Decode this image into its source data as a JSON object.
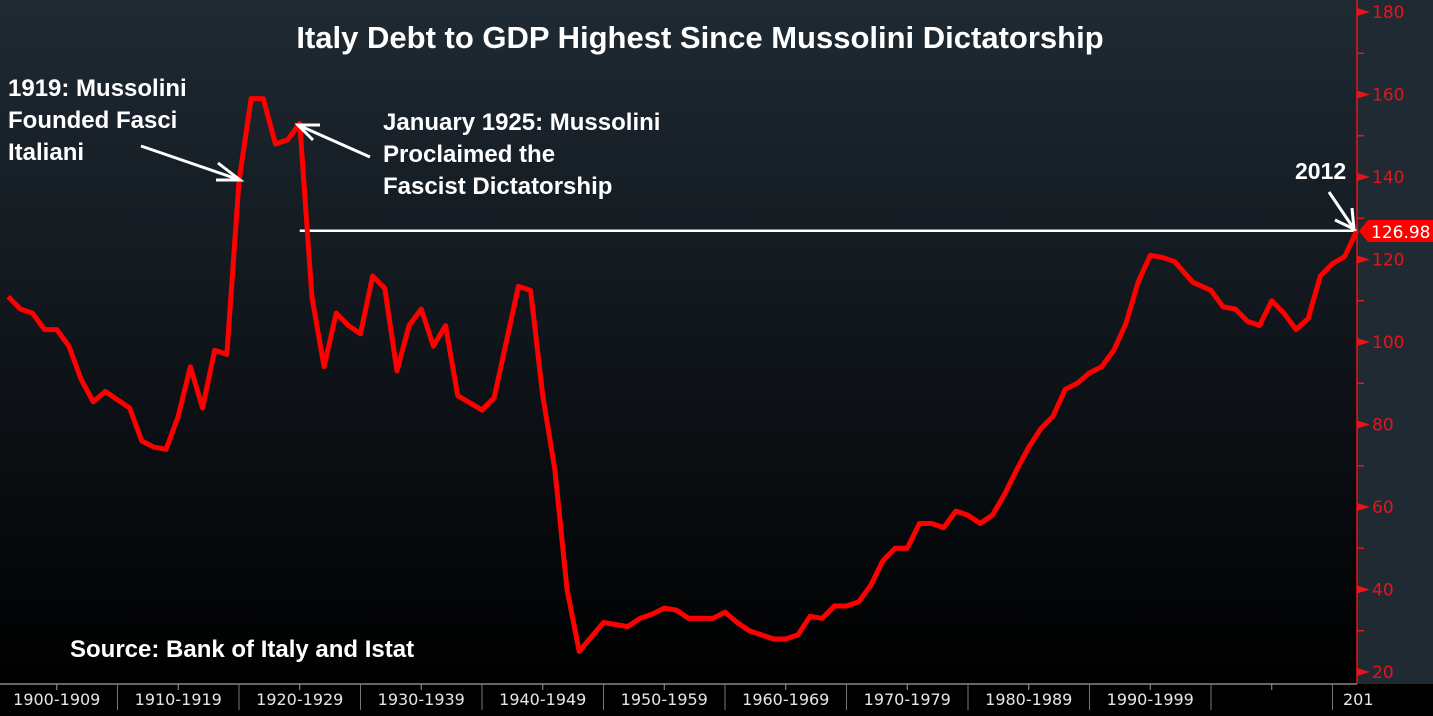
{
  "chart_data": {
    "type": "line",
    "title": "Italy Debt to GDP Highest Since Mussolini Dictatorship",
    "xlabel": "",
    "ylabel": "",
    "ylim": [
      20,
      180
    ],
    "xlim": [
      1900,
      2012
    ],
    "y_ticks": [
      20,
      40,
      60,
      80,
      100,
      120,
      140,
      160,
      180
    ],
    "y_minor_step": 10,
    "grid": false,
    "line_color": "#ff0000",
    "x_tick_labels": [
      {
        "label": "1900-1909",
        "start": 1900
      },
      {
        "label": "1910-1919",
        "start": 1910
      },
      {
        "label": "1920-1929",
        "start": 1920
      },
      {
        "label": "1930-1939",
        "start": 1930
      },
      {
        "label": "1940-1949",
        "start": 1940
      },
      {
        "label": "1950-1959",
        "start": 1950
      },
      {
        "label": "1960-1969",
        "start": 1960
      },
      {
        "label": "1970-1979",
        "start": 1970
      },
      {
        "label": "1980-1989",
        "start": 1980
      },
      {
        "label": "1990-1999",
        "start": 1990
      },
      {
        "label": "",
        "start": 2000
      },
      {
        "label": "201",
        "start": 2010
      }
    ],
    "series": [
      {
        "name": "Italy Debt to GDP",
        "x": [
          1901,
          1902,
          1903,
          1904,
          1905,
          1906,
          1907,
          1908,
          1909,
          1911,
          1912,
          1913,
          1914,
          1915,
          1916,
          1917,
          1918,
          1919,
          1920,
          1921,
          1922,
          1923,
          1924,
          1925,
          1926,
          1927,
          1928,
          1929,
          1930,
          1931,
          1932,
          1933,
          1934,
          1935,
          1936,
          1937,
          1938,
          1940,
          1941,
          1942,
          1943,
          1944,
          1945,
          1946,
          1947,
          1948,
          1950,
          1952,
          1953,
          1954,
          1955,
          1956,
          1957,
          1959,
          1960,
          1961,
          1962,
          1964,
          1965,
          1966,
          1967,
          1968,
          1969,
          1970,
          1971,
          1972,
          1973,
          1974,
          1975,
          1976,
          1977,
          1978,
          1979,
          1980,
          1981,
          1982,
          1983,
          1984,
          1985,
          1986,
          1987,
          1988,
          1989,
          1990,
          1991,
          1992,
          1993,
          1994,
          1995,
          1996,
          1997,
          1998.5,
          2000,
          2001,
          2002,
          2003,
          2004,
          2005,
          2006,
          2007,
          2008,
          2009,
          2010,
          2011,
          2012
        ],
        "values": [
          111,
          108,
          107,
          103,
          103,
          99,
          91,
          85.5,
          88,
          84,
          76,
          74.5,
          74,
          82,
          94,
          84,
          98,
          97,
          139,
          159,
          159,
          148,
          149,
          153,
          111,
          94,
          107,
          104,
          102,
          116,
          113,
          93,
          104,
          108,
          99,
          104,
          87,
          83.5,
          86.5,
          100,
          113.5,
          112.5,
          87,
          69,
          40,
          25,
          32,
          31,
          33,
          34,
          35.5,
          35,
          33,
          33,
          34.5,
          32,
          30,
          28,
          28,
          29,
          33.5,
          33,
          36,
          36,
          37,
          41,
          47,
          50,
          50,
          56,
          56,
          55,
          59,
          58,
          56,
          58,
          63,
          69,
          74.5,
          79,
          82,
          88.5,
          90,
          92.5,
          94,
          98,
          104.5,
          114.5,
          121,
          120.5,
          119.5,
          114.5,
          112.5,
          108.5,
          108,
          105,
          104,
          110,
          107,
          103,
          105.7,
          116,
          119,
          120.7,
          126.98
        ]
      }
    ],
    "last_value_label": "126.98",
    "reference_line_value": 126.98,
    "annotations": [
      {
        "lines": [
          "1919: Mussolini",
          "Founded Fasci",
          "Italiani"
        ]
      },
      {
        "lines": [
          "January 1925: Mussolini",
          "Proclaimed the",
          "Fascist Dictatorship"
        ]
      },
      {
        "lines": [
          "2012"
        ]
      }
    ],
    "source": "Source: Bank of Italy and Istat"
  }
}
